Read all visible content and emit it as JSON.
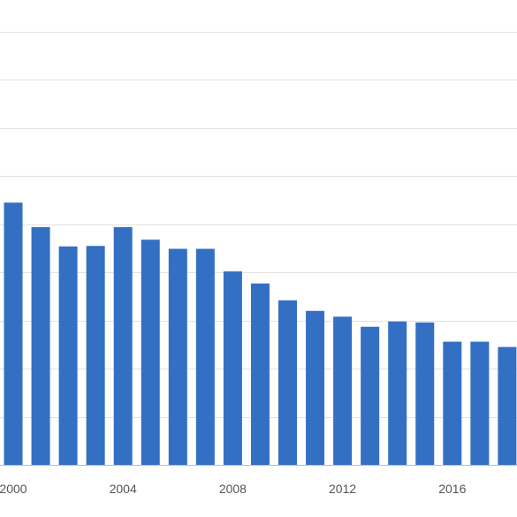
{
  "chart_data": {
    "type": "bar",
    "categories": [
      "2000",
      "2001",
      "2002",
      "2003",
      "2004",
      "2005",
      "2006",
      "2007",
      "2008",
      "2009",
      "2010",
      "2011",
      "2012",
      "2013",
      "2014",
      "2015",
      "2016",
      "2017",
      "2018"
    ],
    "values": [
      54.5,
      49.4,
      45.4,
      45.5,
      49.4,
      46.8,
      44.9,
      44.9,
      40.2,
      37.7,
      34.2,
      32.0,
      30.8,
      28.7,
      29.8,
      29.6,
      25.6,
      25.6,
      24.5
    ],
    "xticks": [
      "2000",
      "2004",
      "2008",
      "2012",
      "2016"
    ],
    "ylim": [
      0,
      90
    ],
    "gridline_step": 10,
    "grid": true,
    "bar_color": "#3370c4",
    "grid_color": "#e2e2e2",
    "axis_color": "#bdbdbd",
    "title": "",
    "xlabel": "",
    "ylabel": ""
  }
}
